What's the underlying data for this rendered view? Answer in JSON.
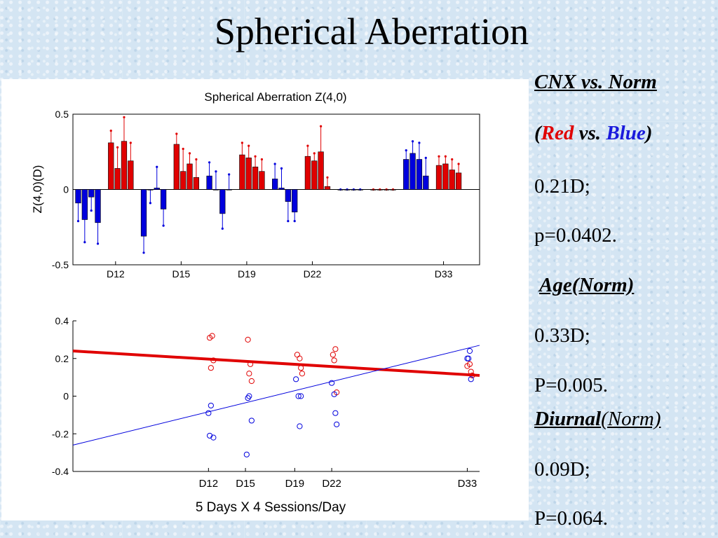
{
  "slide": {
    "title": "Spherical Aberration"
  },
  "side_text": {
    "comparison": "CNX vs. Norm",
    "paren_open": "(",
    "red_word": "Red",
    "vs_word": " vs. ",
    "blue_word": "Blue",
    "paren_close": ")",
    "cnx_value": "0.21D;",
    "cnx_p": "p=0.0402.",
    "age_heading": "Age(Norm)",
    "age_value": "0.33D;",
    "age_p": "P=0.005.",
    "diurnal_heading_a": "Diurnal",
    "diurnal_heading_b": "(Norm)",
    "diurnal_value": "0.09D;",
    "diurnal_p": "P=0.064."
  },
  "colors": {
    "red": "#e00000",
    "blue": "#0000dd",
    "text_red": "#e00000",
    "text_blue": "#1a1adc"
  },
  "chart_data": [
    {
      "type": "bar",
      "title": "Spherical Aberration Z(4,0)",
      "ylabel": "Z(4,0)(D)",
      "ylim": [
        -0.5,
        0.5
      ],
      "yticks": [
        "0.5",
        "0",
        "-0.5"
      ],
      "xlim": [
        0,
        62
      ],
      "xticks": [
        {
          "label": "D12",
          "x": 6.5
        },
        {
          "label": "D15",
          "x": 16.5
        },
        {
          "label": "D19",
          "x": 26.5
        },
        {
          "label": "D22",
          "x": 36.5
        },
        {
          "label": "D33",
          "x": 56.5
        }
      ],
      "bars": [
        {
          "x": 0.8,
          "v": -0.09,
          "e": -0.21,
          "c": "blue"
        },
        {
          "x": 1.8,
          "v": -0.2,
          "e": -0.35,
          "c": "blue"
        },
        {
          "x": 2.8,
          "v": -0.05,
          "e": -0.14,
          "c": "blue"
        },
        {
          "x": 3.8,
          "v": -0.22,
          "e": -0.36,
          "c": "blue"
        },
        {
          "x": 5.8,
          "v": 0.31,
          "e": 0.39,
          "c": "red"
        },
        {
          "x": 6.8,
          "v": 0.14,
          "e": 0.28,
          "c": "red"
        },
        {
          "x": 7.8,
          "v": 0.32,
          "e": 0.48,
          "c": "red"
        },
        {
          "x": 8.8,
          "v": 0.19,
          "e": 0.31,
          "c": "red"
        },
        {
          "x": 10.8,
          "v": -0.31,
          "e": -0.42,
          "c": "blue"
        },
        {
          "x": 11.8,
          "v": 0.0,
          "e": -0.09,
          "c": "blue"
        },
        {
          "x": 12.8,
          "v": 0.01,
          "e": 0.15,
          "c": "blue"
        },
        {
          "x": 13.8,
          "v": -0.13,
          "e": -0.24,
          "c": "blue"
        },
        {
          "x": 15.8,
          "v": 0.3,
          "e": 0.37,
          "c": "red"
        },
        {
          "x": 16.8,
          "v": 0.12,
          "e": 0.27,
          "c": "red"
        },
        {
          "x": 17.8,
          "v": 0.17,
          "e": 0.24,
          "c": "red"
        },
        {
          "x": 18.8,
          "v": 0.08,
          "e": 0.2,
          "c": "red"
        },
        {
          "x": 20.8,
          "v": 0.09,
          "e": 0.18,
          "c": "blue"
        },
        {
          "x": 21.8,
          "v": 0.0,
          "e": 0.12,
          "c": "blue"
        },
        {
          "x": 22.8,
          "v": -0.16,
          "e": -0.26,
          "c": "blue"
        },
        {
          "x": 23.8,
          "v": 0.0,
          "e": 0.1,
          "c": "blue"
        },
        {
          "x": 25.8,
          "v": 0.23,
          "e": 0.31,
          "c": "red"
        },
        {
          "x": 26.8,
          "v": 0.21,
          "e": 0.29,
          "c": "red"
        },
        {
          "x": 27.8,
          "v": 0.15,
          "e": 0.22,
          "c": "red"
        },
        {
          "x": 28.8,
          "v": 0.12,
          "e": 0.2,
          "c": "red"
        },
        {
          "x": 30.8,
          "v": 0.07,
          "e": 0.17,
          "c": "blue"
        },
        {
          "x": 31.8,
          "v": 0.01,
          "e": 0.14,
          "c": "blue"
        },
        {
          "x": 32.8,
          "v": -0.08,
          "e": -0.21,
          "c": "blue"
        },
        {
          "x": 33.8,
          "v": -0.15,
          "e": -0.21,
          "c": "blue"
        },
        {
          "x": 35.8,
          "v": 0.22,
          "e": 0.29,
          "c": "red"
        },
        {
          "x": 36.8,
          "v": 0.19,
          "e": 0.24,
          "c": "red"
        },
        {
          "x": 37.8,
          "v": 0.25,
          "e": 0.42,
          "c": "red"
        },
        {
          "x": 38.8,
          "v": 0.02,
          "e": 0.08,
          "c": "red"
        },
        {
          "x": 40.8,
          "v": 0.0,
          "e": 0.0,
          "c": "blue"
        },
        {
          "x": 41.8,
          "v": 0.0,
          "e": 0.0,
          "c": "blue"
        },
        {
          "x": 42.8,
          "v": 0.0,
          "e": 0.0,
          "c": "blue"
        },
        {
          "x": 43.8,
          "v": 0.0,
          "e": 0.0,
          "c": "blue"
        },
        {
          "x": 45.8,
          "v": 0.0,
          "e": 0.0,
          "c": "red"
        },
        {
          "x": 46.8,
          "v": 0.0,
          "e": 0.0,
          "c": "red"
        },
        {
          "x": 47.8,
          "v": 0.0,
          "e": 0.0,
          "c": "red"
        },
        {
          "x": 48.8,
          "v": 0.0,
          "e": 0.0,
          "c": "red"
        },
        {
          "x": 50.8,
          "v": 0.2,
          "e": 0.26,
          "c": "blue"
        },
        {
          "x": 51.8,
          "v": 0.24,
          "e": 0.32,
          "c": "blue"
        },
        {
          "x": 52.8,
          "v": 0.2,
          "e": 0.31,
          "c": "blue"
        },
        {
          "x": 53.8,
          "v": 0.09,
          "e": 0.21,
          "c": "blue"
        },
        {
          "x": 55.8,
          "v": 0.16,
          "e": 0.22,
          "c": "red"
        },
        {
          "x": 56.8,
          "v": 0.17,
          "e": 0.22,
          "c": "red"
        },
        {
          "x": 57.8,
          "v": 0.13,
          "e": 0.2,
          "c": "red"
        },
        {
          "x": 58.8,
          "v": 0.11,
          "e": 0.17,
          "c": "red"
        }
      ]
    },
    {
      "type": "scatter",
      "xlabel": "5 Days X 4 Sessions/Day",
      "ylim": [
        -0.4,
        0.4
      ],
      "yticks": [
        "0.4",
        "0.2",
        "0",
        "-0.2",
        "-0.4"
      ],
      "xlim": [
        1,
        34
      ],
      "xticks": [
        {
          "label": "D12",
          "x": 12
        },
        {
          "label": "D15",
          "x": 15
        },
        {
          "label": "D19",
          "x": 19
        },
        {
          "label": "D22",
          "x": 22
        },
        {
          "label": "D33",
          "x": 33
        }
      ],
      "red_points": [
        [
          12.1,
          0.31
        ],
        [
          12.3,
          0.32
        ],
        [
          12.4,
          0.19
        ],
        [
          12.2,
          0.15
        ],
        [
          15.2,
          0.3
        ],
        [
          15.4,
          0.17
        ],
        [
          15.3,
          0.12
        ],
        [
          15.5,
          0.08
        ],
        [
          19.2,
          0.22
        ],
        [
          19.4,
          0.2
        ],
        [
          19.5,
          0.15
        ],
        [
          19.6,
          0.12
        ],
        [
          22.1,
          0.22
        ],
        [
          22.3,
          0.25
        ],
        [
          22.2,
          0.19
        ],
        [
          22.4,
          0.02
        ],
        [
          33.0,
          0.16
        ],
        [
          33.2,
          0.17
        ],
        [
          33.3,
          0.13
        ],
        [
          33.4,
          0.11
        ]
      ],
      "blue_points": [
        [
          12.0,
          -0.09
        ],
        [
          12.2,
          -0.05
        ],
        [
          12.1,
          -0.21
        ],
        [
          12.4,
          -0.22
        ],
        [
          15.1,
          -0.31
        ],
        [
          15.2,
          -0.01
        ],
        [
          15.3,
          0.0
        ],
        [
          15.5,
          -0.13
        ],
        [
          19.1,
          0.09
        ],
        [
          19.3,
          0.0
        ],
        [
          19.4,
          -0.16
        ],
        [
          19.5,
          0.0
        ],
        [
          22.0,
          0.07
        ],
        [
          22.2,
          0.01
        ],
        [
          22.3,
          -0.09
        ],
        [
          22.4,
          -0.15
        ],
        [
          33.0,
          0.2
        ],
        [
          33.2,
          0.24
        ],
        [
          33.1,
          0.2
        ],
        [
          33.3,
          0.09
        ]
      ],
      "red_fit": [
        [
          1,
          0.24
        ],
        [
          34,
          0.11
        ]
      ],
      "blue_fit": [
        [
          1,
          -0.26
        ],
        [
          34,
          0.27
        ]
      ]
    }
  ]
}
